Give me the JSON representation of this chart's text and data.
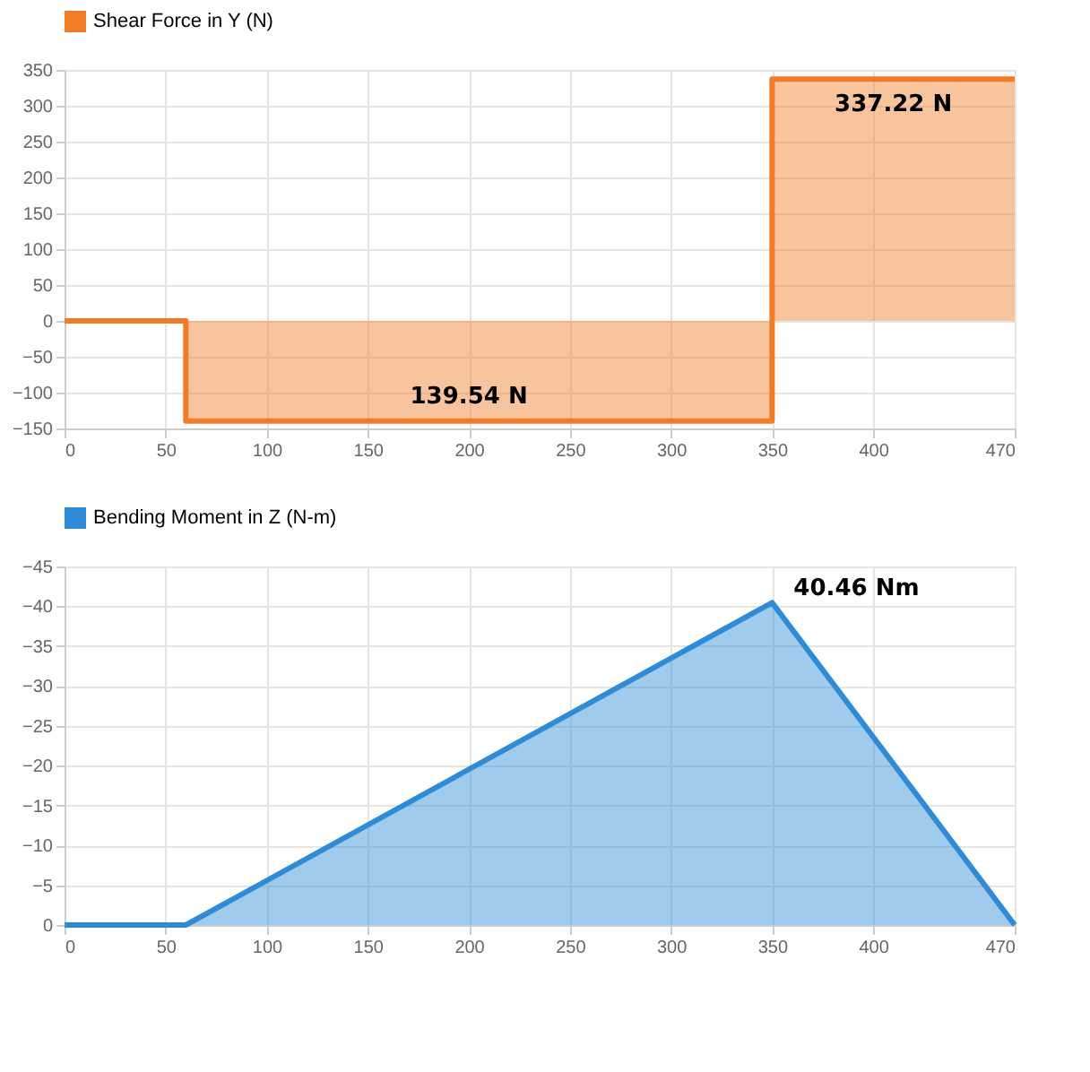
{
  "chart_data": [
    {
      "type": "area",
      "x": [
        0,
        60,
        60,
        350,
        350,
        470
      ],
      "series": [
        {
          "name": "Shear Force in Y (N)",
          "color": "#f07c27",
          "values": [
            0,
            0,
            -139.54,
            -139.54,
            337.22,
            337.22
          ]
        }
      ],
      "xlim": [
        0,
        470
      ],
      "xticks": [
        0,
        50,
        100,
        150,
        200,
        250,
        300,
        350,
        400,
        470
      ],
      "ylim": [
        -150,
        350
      ],
      "yticks": [
        -150,
        -100,
        -50,
        0,
        50,
        100,
        150,
        200,
        250,
        300,
        350
      ],
      "grid": true,
      "legend": "top",
      "annotations": [
        {
          "text": "337.22 N",
          "x": 410,
          "y": 337.22
        },
        {
          "text": "139.54 N",
          "x": 200,
          "y": -139.54
        }
      ]
    },
    {
      "type": "area",
      "x": [
        0,
        60,
        350,
        470
      ],
      "series": [
        {
          "name": "Bending Moment in Z (N-m)",
          "color": "#2f8bd6",
          "values": [
            0,
            0,
            -40.46,
            0
          ]
        }
      ],
      "xlim": [
        0,
        470
      ],
      "xticks": [
        0,
        50,
        100,
        150,
        200,
        250,
        300,
        350,
        400,
        470
      ],
      "ylim": [
        0,
        -45
      ],
      "yticks": [
        0,
        -5,
        -10,
        -15,
        -20,
        -25,
        -30,
        -35,
        -40,
        -45
      ],
      "grid": true,
      "legend": "top",
      "annotations": [
        {
          "text": "40.46 Nm",
          "x": 350,
          "y": -40.46
        }
      ]
    }
  ]
}
